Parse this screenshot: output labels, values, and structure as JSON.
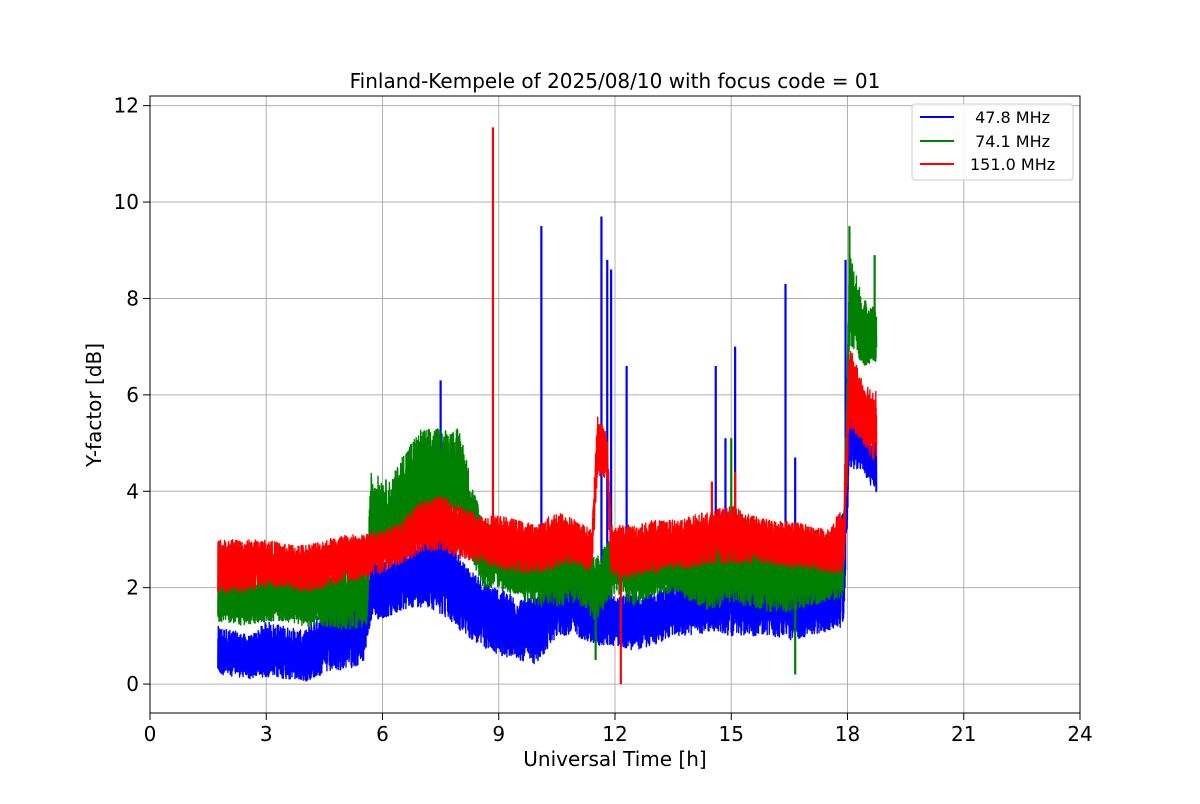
{
  "chart_data": {
    "type": "line",
    "title": "Finland-Kempele of 2025/08/10 with focus code = 01",
    "xlabel": "Universal Time [h]",
    "ylabel": "Y-factor [dB]",
    "xlim": [
      0,
      24
    ],
    "ylim": [
      -0.6,
      12.2
    ],
    "xticks": [
      0,
      3,
      6,
      9,
      12,
      15,
      18,
      21,
      24
    ],
    "xtick_labels": [
      "0",
      "3",
      "6",
      "9",
      "12",
      "15",
      "18",
      "21",
      "24"
    ],
    "yticks": [
      0,
      2,
      4,
      6,
      8,
      10,
      12
    ],
    "ytick_labels": [
      "0",
      "2",
      "4",
      "6",
      "8",
      "10",
      "12"
    ],
    "grid": true,
    "legend_position": "top-right",
    "series": [
      {
        "name": " 47.8 MHz",
        "color": "#0000ff",
        "bands": [
          [
            1.75,
            0.2,
            1.2
          ],
          [
            2.2,
            0.15,
            1.1
          ],
          [
            2.6,
            0.1,
            1.0
          ],
          [
            3.0,
            0.15,
            1.3
          ],
          [
            3.5,
            0.1,
            1.2
          ],
          [
            4.0,
            0.05,
            1.1
          ],
          [
            4.5,
            0.2,
            1.6
          ],
          [
            5.0,
            0.3,
            1.8
          ],
          [
            5.5,
            0.4,
            1.8
          ],
          [
            5.7,
            1.3,
            2.5
          ],
          [
            6.2,
            1.4,
            2.6
          ],
          [
            6.8,
            1.6,
            2.9
          ],
          [
            7.2,
            1.6,
            3.2
          ],
          [
            7.6,
            1.4,
            3.4
          ],
          [
            8.0,
            1.1,
            2.6
          ],
          [
            8.5,
            0.8,
            2.2
          ],
          [
            9.0,
            0.6,
            2.0
          ],
          [
            9.5,
            0.5,
            1.8
          ],
          [
            10.0,
            0.4,
            1.8
          ],
          [
            10.5,
            1.0,
            3.0
          ],
          [
            11.0,
            1.0,
            2.5
          ],
          [
            11.5,
            0.8,
            2.2
          ],
          [
            12.0,
            0.8,
            1.8
          ],
          [
            12.5,
            0.7,
            1.9
          ],
          [
            13.0,
            0.8,
            1.9
          ],
          [
            13.5,
            1.0,
            2.1
          ],
          [
            14.0,
            1.0,
            2.4
          ],
          [
            14.5,
            1.1,
            2.0
          ],
          [
            15.0,
            1.0,
            2.6
          ],
          [
            15.5,
            1.0,
            2.6
          ],
          [
            16.0,
            1.0,
            2.3
          ],
          [
            16.5,
            0.9,
            2.3
          ],
          [
            17.0,
            1.0,
            2.2
          ],
          [
            17.5,
            1.1,
            2.0
          ],
          [
            17.9,
            1.2,
            3.8
          ],
          [
            18.05,
            4.5,
            6.0
          ],
          [
            18.4,
            4.4,
            5.2
          ],
          [
            18.75,
            3.9,
            5.0
          ]
        ],
        "spikes": [
          [
            7.5,
            6.3
          ],
          [
            10.1,
            9.5
          ],
          [
            11.65,
            9.7
          ],
          [
            11.8,
            8.8
          ],
          [
            11.9,
            8.6
          ],
          [
            12.3,
            6.6
          ],
          [
            14.6,
            6.6
          ],
          [
            14.85,
            5.1
          ],
          [
            15.1,
            7.0
          ],
          [
            16.4,
            8.3
          ],
          [
            16.65,
            4.7
          ],
          [
            17.95,
            8.8
          ]
        ]
      },
      {
        "name": " 74.1 MHz",
        "color": "#008000",
        "bands": [
          [
            1.75,
            1.3,
            2.4
          ],
          [
            2.5,
            1.2,
            2.2
          ],
          [
            3.0,
            1.3,
            2.3
          ],
          [
            3.5,
            1.3,
            2.3
          ],
          [
            4.0,
            1.2,
            2.2
          ],
          [
            4.5,
            1.2,
            2.4
          ],
          [
            5.0,
            1.1,
            2.5
          ],
          [
            5.6,
            1.2,
            2.4
          ],
          [
            5.7,
            2.6,
            4.4
          ],
          [
            6.2,
            2.6,
            4.2
          ],
          [
            6.6,
            2.8,
            4.9
          ],
          [
            7.0,
            3.2,
            5.3
          ],
          [
            7.5,
            3.4,
            5.3
          ],
          [
            8.0,
            3.2,
            5.3
          ],
          [
            8.3,
            2.6,
            4.2
          ],
          [
            8.6,
            2.0,
            3.4
          ],
          [
            9.0,
            2.0,
            3.2
          ],
          [
            9.5,
            1.8,
            3.0
          ],
          [
            10.0,
            1.6,
            2.9
          ],
          [
            10.5,
            1.6,
            3.0
          ],
          [
            11.0,
            1.7,
            3.0
          ],
          [
            11.5,
            1.3,
            2.6
          ],
          [
            12.0,
            1.9,
            3.2
          ],
          [
            12.5,
            1.6,
            3.0
          ],
          [
            13.0,
            1.8,
            3.0
          ],
          [
            13.5,
            1.9,
            3.0
          ],
          [
            14.0,
            1.7,
            3.0
          ],
          [
            14.5,
            1.5,
            3.0
          ],
          [
            15.0,
            1.7,
            3.3
          ],
          [
            15.5,
            1.6,
            3.6
          ],
          [
            16.0,
            1.5,
            3.0
          ],
          [
            16.5,
            1.5,
            3.2
          ],
          [
            17.0,
            1.6,
            2.8
          ],
          [
            17.5,
            1.7,
            2.8
          ],
          [
            17.9,
            1.8,
            3.5
          ],
          [
            18.05,
            7.0,
            9.0
          ],
          [
            18.4,
            6.6,
            8.0
          ],
          [
            18.75,
            6.7,
            7.8
          ]
        ],
        "spikes": [
          [
            16.65,
            0.2
          ],
          [
            11.5,
            0.5
          ],
          [
            18.05,
            9.5
          ],
          [
            18.7,
            8.9
          ],
          [
            15.0,
            5.1
          ]
        ]
      },
      {
        "name": "151.0 MHz",
        "color": "#ff0000",
        "bands": [
          [
            1.75,
            1.9,
            3.0
          ],
          [
            2.5,
            1.9,
            3.0
          ],
          [
            3.0,
            2.0,
            3.0
          ],
          [
            3.5,
            2.0,
            2.9
          ],
          [
            4.0,
            1.9,
            2.9
          ],
          [
            4.5,
            2.0,
            3.0
          ],
          [
            5.0,
            2.1,
            3.1
          ],
          [
            5.5,
            2.2,
            3.1
          ],
          [
            6.0,
            2.3,
            3.2
          ],
          [
            6.5,
            2.5,
            3.4
          ],
          [
            7.0,
            2.7,
            3.8
          ],
          [
            7.5,
            2.8,
            3.9
          ],
          [
            8.0,
            2.6,
            3.7
          ],
          [
            8.5,
            2.5,
            3.5
          ],
          [
            9.0,
            2.4,
            3.5
          ],
          [
            9.5,
            2.3,
            3.4
          ],
          [
            10.0,
            2.3,
            3.3
          ],
          [
            10.5,
            2.4,
            3.6
          ],
          [
            11.0,
            2.5,
            3.4
          ],
          [
            11.4,
            2.3,
            3.2
          ],
          [
            11.55,
            4.3,
            5.6
          ],
          [
            11.8,
            4.2,
            5.2
          ],
          [
            11.9,
            2.2,
            3.3
          ],
          [
            12.5,
            2.2,
            3.3
          ],
          [
            13.0,
            2.3,
            3.4
          ],
          [
            13.5,
            2.4,
            3.4
          ],
          [
            14.0,
            2.4,
            3.5
          ],
          [
            14.5,
            2.5,
            3.6
          ],
          [
            15.0,
            2.5,
            3.7
          ],
          [
            15.5,
            2.5,
            3.5
          ],
          [
            16.0,
            2.5,
            3.4
          ],
          [
            16.5,
            2.4,
            3.4
          ],
          [
            17.0,
            2.4,
            3.3
          ],
          [
            17.5,
            2.3,
            3.2
          ],
          [
            17.9,
            2.3,
            3.7
          ],
          [
            18.05,
            5.3,
            7.0
          ],
          [
            18.4,
            5.0,
            6.3
          ],
          [
            18.75,
            4.5,
            6.1
          ]
        ],
        "spikes": [
          [
            8.85,
            11.55
          ],
          [
            12.15,
            0.0
          ],
          [
            14.5,
            4.2
          ],
          [
            15.1,
            4.4
          ]
        ]
      }
    ]
  }
}
